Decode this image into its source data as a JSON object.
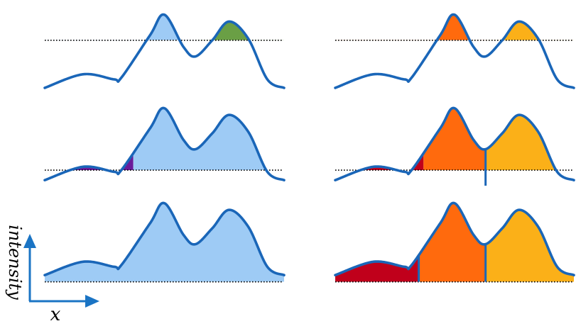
{
  "axes": {
    "x_label": "x",
    "y_label": "intensity",
    "color": "#1a74c4"
  },
  "curve": {
    "stroke": "#1a66b8",
    "control_points": [
      [
        0,
        10
      ],
      [
        16,
        26
      ],
      [
        29,
        20
      ],
      [
        32,
        22
      ],
      [
        44,
        72
      ],
      [
        50,
        96
      ],
      [
        58,
        58
      ],
      [
        63,
        47
      ],
      [
        70,
        66
      ],
      [
        77,
        88
      ],
      [
        85,
        68
      ],
      [
        93,
        20
      ],
      [
        100,
        10
      ]
    ]
  },
  "fills": {
    "light_blue": "#9ecbf5",
    "green": "#6a9f45",
    "purple": "#6a1a9a",
    "dark_red": "#c0001b",
    "orange": "#ff6a0d",
    "yellow": "#fbb018"
  },
  "threshold_line": {
    "color": "#000000"
  },
  "panels": [
    {
      "id": "left-top",
      "column": "left",
      "row": 1,
      "threshold": 0.66,
      "regions": [
        {
          "x0": 0,
          "x1": 63,
          "fill": "light_blue"
        },
        {
          "x0": 63,
          "x1": 100,
          "fill": "green"
        }
      ],
      "dividers": []
    },
    {
      "id": "left-middle",
      "column": "left",
      "row": 2,
      "threshold": 0.22,
      "regions": [
        {
          "x0": 0,
          "x1": 37,
          "fill": "purple"
        },
        {
          "x0": 37,
          "x1": 100,
          "fill": "light_blue"
        }
      ],
      "dividers": []
    },
    {
      "id": "left-bottom",
      "column": "left",
      "row": 3,
      "threshold": 0.02,
      "regions": [
        {
          "x0": 0,
          "x1": 100,
          "fill": "light_blue"
        }
      ],
      "dividers": []
    },
    {
      "id": "right-top",
      "column": "right",
      "row": 1,
      "threshold": 0.66,
      "regions": [
        {
          "x0": 0,
          "x1": 63,
          "fill": "orange"
        },
        {
          "x0": 63,
          "x1": 100,
          "fill": "yellow"
        }
      ],
      "dividers": []
    },
    {
      "id": "right-middle",
      "column": "right",
      "row": 2,
      "threshold": 0.22,
      "regions": [
        {
          "x0": 0,
          "x1": 37,
          "fill": "dark_red"
        },
        {
          "x0": 37,
          "x1": 63,
          "fill": "orange"
        },
        {
          "x0": 63,
          "x1": 100,
          "fill": "yellow"
        }
      ],
      "dividers": [
        63
      ]
    },
    {
      "id": "right-bottom",
      "column": "right",
      "row": 3,
      "threshold": 0.02,
      "regions": [
        {
          "x0": 0,
          "x1": 35,
          "fill": "dark_red"
        },
        {
          "x0": 35,
          "x1": 63,
          "fill": "orange"
        },
        {
          "x0": 63,
          "x1": 100,
          "fill": "yellow"
        }
      ],
      "dividers": [
        35,
        63
      ]
    }
  ]
}
